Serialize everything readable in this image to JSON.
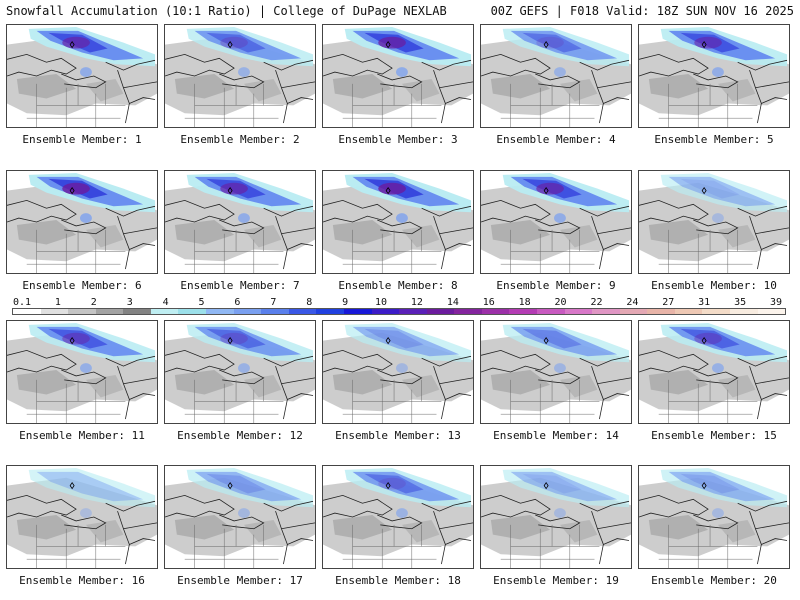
{
  "header": {
    "left": "Snowfall Accumulation (10:1 Ratio) | College of DuPage NEXLAB",
    "right": "00Z GEFS | F018 Valid: 18Z SUN NOV 16 2025"
  },
  "legend": {
    "labels": [
      "0.1",
      "1",
      "2",
      "3",
      "4",
      "5",
      "6",
      "7",
      "8",
      "9",
      "10",
      "12",
      "14",
      "16",
      "18",
      "20",
      "22",
      "24",
      "27",
      "31",
      "35",
      "39"
    ],
    "colors": [
      "#ffffff",
      "#e0e0e0",
      "#c4c4c4",
      "#a3a3a3",
      "#838383",
      "#bfeef2",
      "#9ce0ea",
      "#90b8f4",
      "#7aa0f0",
      "#5a80ec",
      "#3a58e6",
      "#2040e0",
      "#1818d8",
      "#3c1cc8",
      "#5a20b8",
      "#6c1c9e",
      "#84249e",
      "#9c30a8",
      "#b43cb4",
      "#c85ac0",
      "#d878c8",
      "#e096c4",
      "#e4a8b4",
      "#e8b4a8",
      "#eec8b4",
      "#f4dcc8",
      "#f8ece0",
      "#fcf4ec"
    ]
  },
  "members": [
    {
      "label": "Ensemble Member: 1",
      "intensity": 0.85
    },
    {
      "label": "Ensemble Member: 2",
      "intensity": 0.65
    },
    {
      "label": "Ensemble Member: 3",
      "intensity": 0.9
    },
    {
      "label": "Ensemble Member: 4",
      "intensity": 0.6
    },
    {
      "label": "Ensemble Member: 5",
      "intensity": 0.8
    },
    {
      "label": "Ensemble Member: 6",
      "intensity": 0.95
    },
    {
      "label": "Ensemble Member: 7",
      "intensity": 0.85
    },
    {
      "label": "Ensemble Member: 8",
      "intensity": 0.95
    },
    {
      "label": "Ensemble Member: 9",
      "intensity": 0.85
    },
    {
      "label": "Ensemble Member: 10",
      "intensity": 0.3
    },
    {
      "label": "Ensemble Member: 11",
      "intensity": 0.75
    },
    {
      "label": "Ensemble Member: 12",
      "intensity": 0.65
    },
    {
      "label": "Ensemble Member: 13",
      "intensity": 0.4
    },
    {
      "label": "Ensemble Member: 14",
      "intensity": 0.5
    },
    {
      "label": "Ensemble Member: 15",
      "intensity": 0.7
    },
    {
      "label": "Ensemble Member: 16",
      "intensity": 0.2
    },
    {
      "label": "Ensemble Member: 17",
      "intensity": 0.4
    },
    {
      "label": "Ensemble Member: 18",
      "intensity": 0.6
    },
    {
      "label": "Ensemble Member: 19",
      "intensity": 0.3
    },
    {
      "label": "Ensemble Member: 20",
      "intensity": 0.35
    }
  ]
}
